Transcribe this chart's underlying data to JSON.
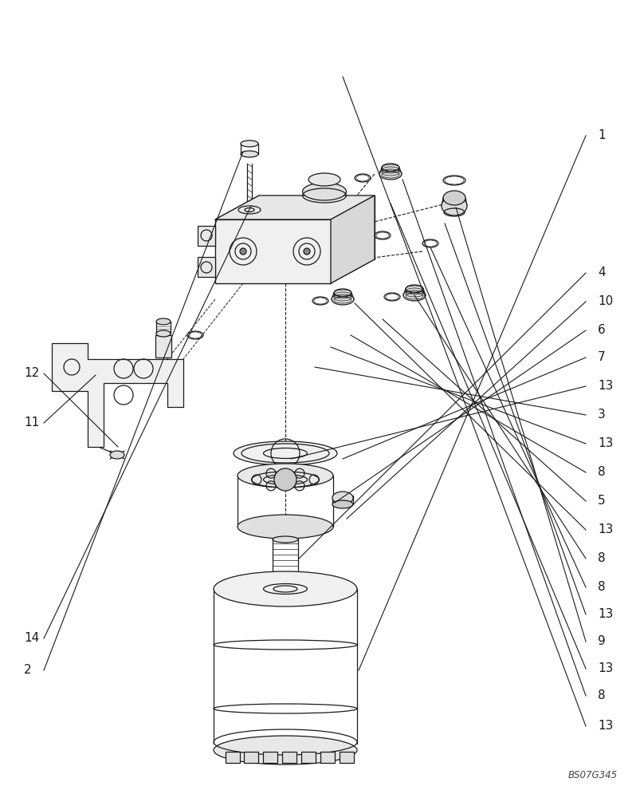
{
  "bg_color": "#ffffff",
  "line_color": "#1a1a1a",
  "lw": 0.9,
  "watermark": "BS07G345",
  "right_labels": [
    [
      "13",
      0.91
    ],
    [
      "8",
      0.872
    ],
    [
      "13",
      0.838
    ],
    [
      "9",
      0.804
    ],
    [
      "13",
      0.77
    ],
    [
      "8",
      0.736
    ],
    [
      "8",
      0.7
    ],
    [
      "13",
      0.664
    ],
    [
      "5",
      0.628
    ],
    [
      "8",
      0.592
    ],
    [
      "13",
      0.556
    ],
    [
      "3",
      0.52
    ],
    [
      "13",
      0.484
    ],
    [
      "7",
      0.448
    ],
    [
      "6",
      0.414
    ],
    [
      "10",
      0.378
    ],
    [
      "4",
      0.342
    ],
    [
      "1",
      0.17
    ]
  ],
  "left_labels": [
    [
      "2",
      0.84
    ],
    [
      "14",
      0.8
    ],
    [
      "11",
      0.53
    ],
    [
      "12",
      0.468
    ]
  ]
}
